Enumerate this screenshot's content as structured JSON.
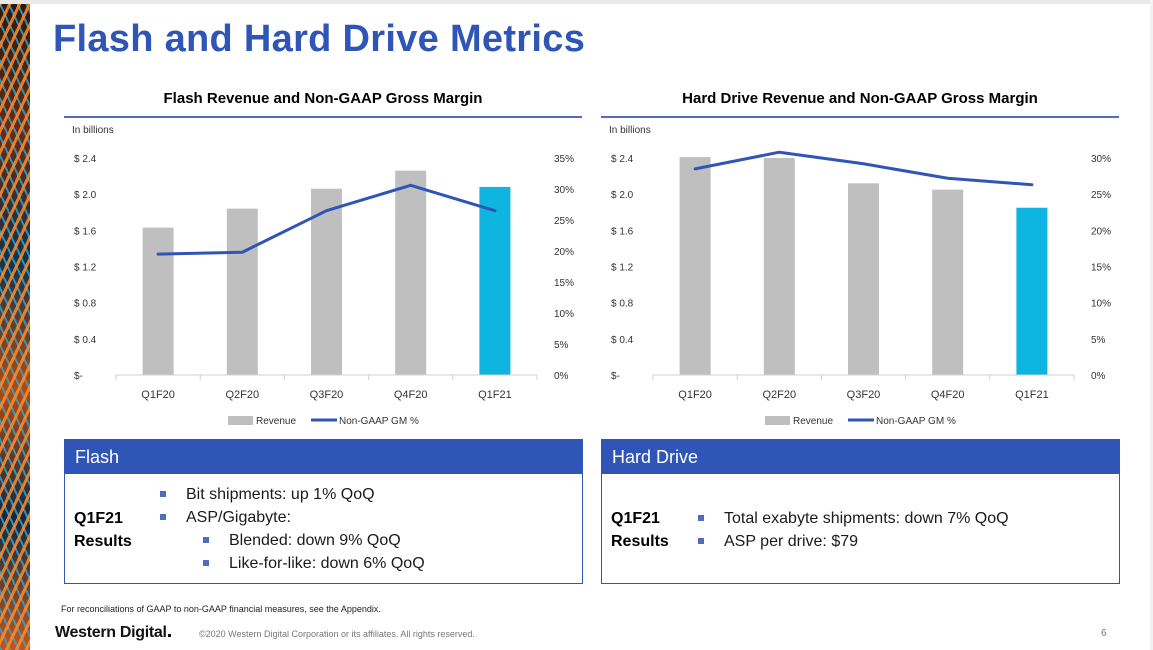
{
  "slide": {
    "title": "Flash and Hard Drive Metrics",
    "footnote": "For reconciliations of GAAP to non-GAAP financial measures, see the Appendix.",
    "logo": "Western Digital",
    "copyright": "©2020 Western Digital Corporation or its affiliates. All rights reserved.",
    "page_number": "6"
  },
  "colors": {
    "accent": "#2f55b7",
    "bar": "#bfbfbf",
    "highlight_bar": "#0eb5e0",
    "line": "#2f55b7"
  },
  "chart_data": [
    {
      "type": "bar",
      "title": "Flash Revenue and Non-GAAP Gross Margin",
      "units_note": "In billions",
      "categories": [
        "Q1F20",
        "Q2F20",
        "Q3F20",
        "Q4F20",
        "Q1F21"
      ],
      "series": [
        {
          "name": "Revenue",
          "type": "bar",
          "values": [
            1.63,
            1.84,
            2.06,
            2.26,
            2.08
          ],
          "highlight_last": true
        },
        {
          "name": "Non-GAAP GM %",
          "type": "line",
          "axis": "right",
          "values": [
            19.5,
            19.8,
            26.5,
            30.6,
            26.5
          ]
        }
      ],
      "y_left": {
        "ticks": [
          0,
          0.4,
          0.8,
          1.2,
          1.6,
          2.0,
          2.4
        ],
        "tick_labels": [
          "$-",
          "$ 0.4",
          "$ 0.8",
          "$ 1.2",
          "$ 1.6",
          "$ 2.0",
          "$ 2.4"
        ],
        "ylim": [
          0,
          2.4
        ]
      },
      "y_right": {
        "ticks": [
          0,
          5,
          10,
          15,
          20,
          25,
          30,
          35
        ],
        "tick_labels": [
          "0%",
          "5%",
          "10%",
          "15%",
          "20%",
          "25%",
          "30%",
          "35%"
        ],
        "ylim": [
          0,
          35
        ]
      },
      "legend": [
        "Revenue",
        "Non-GAAP GM %"
      ],
      "grid": false
    },
    {
      "type": "bar",
      "title": "Hard Drive Revenue and Non-GAAP Gross Margin",
      "units_note": "In billions",
      "categories": [
        "Q1F20",
        "Q2F20",
        "Q3F20",
        "Q4F20",
        "Q1F21"
      ],
      "series": [
        {
          "name": "Revenue",
          "type": "bar",
          "values": [
            2.41,
            2.4,
            2.12,
            2.05,
            1.85
          ],
          "highlight_last": true
        },
        {
          "name": "Non-GAAP GM %",
          "type": "line",
          "axis": "right",
          "values": [
            28.5,
            30.8,
            29.2,
            27.2,
            26.3
          ]
        }
      ],
      "y_left": {
        "ticks": [
          0,
          0.4,
          0.8,
          1.2,
          1.6,
          2.0,
          2.4
        ],
        "tick_labels": [
          "$-",
          "$ 0.4",
          "$ 0.8",
          "$ 1.2",
          "$ 1.6",
          "$ 2.0",
          "$ 2.4"
        ],
        "ylim": [
          0,
          2.4
        ]
      },
      "y_right": {
        "ticks": [
          0,
          5,
          10,
          15,
          20,
          25,
          30
        ],
        "tick_labels": [
          "0%",
          "5%",
          "10%",
          "15%",
          "20%",
          "25%",
          "30%"
        ],
        "ylim": [
          0,
          30
        ]
      },
      "legend": [
        "Revenue",
        "Non-GAAP GM %"
      ],
      "grid": false
    }
  ],
  "flash_card": {
    "header": "Flash",
    "label_line1": "Q1F21",
    "label_line2": "Results",
    "bullets": [
      "Bit shipments: up 1% QoQ",
      "ASP/Gigabyte:",
      "Blended: down 9% QoQ",
      "Like-for-like: down 6% QoQ"
    ]
  },
  "hdd_card": {
    "header": "Hard Drive",
    "label_line1": "Q1F21",
    "label_line2": "Results",
    "bullets": [
      "Total exabyte shipments: down 7% QoQ",
      "ASP per drive: $79"
    ]
  }
}
